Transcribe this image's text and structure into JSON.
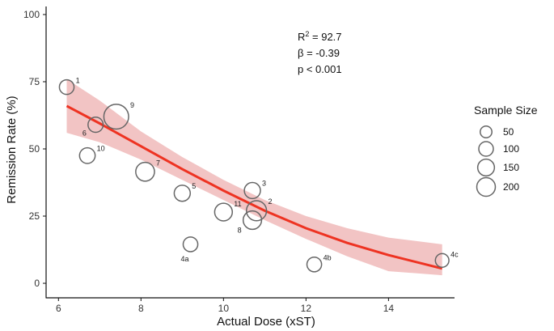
{
  "chart_data": {
    "type": "scatter",
    "title": "",
    "xlabel": "Actual Dose (xST)",
    "ylabel": "Remission Rate (%)",
    "xlim": [
      5.7,
      15.6
    ],
    "ylim": [
      -3,
      103
    ],
    "x_ticks": [
      6,
      8,
      10,
      12,
      14
    ],
    "y_ticks": [
      0,
      25,
      50,
      75,
      100
    ],
    "grid": false,
    "points": [
      {
        "label": "1",
        "x": 6.2,
        "y": 73,
        "size": 40
      },
      {
        "label": "9",
        "x": 7.4,
        "y": 62,
        "size": 200
      },
      {
        "label": "6",
        "x": 6.9,
        "y": 59,
        "size": 45
      },
      {
        "label": "10",
        "x": 6.7,
        "y": 47.5,
        "size": 50
      },
      {
        "label": "7",
        "x": 8.1,
        "y": 41.5,
        "size": 90
      },
      {
        "label": "5",
        "x": 9.0,
        "y": 33.5,
        "size": 55
      },
      {
        "label": "3",
        "x": 10.7,
        "y": 34.5,
        "size": 55
      },
      {
        "label": "11",
        "x": 10.0,
        "y": 26.5,
        "size": 75
      },
      {
        "label": "2",
        "x": 10.8,
        "y": 27,
        "size": 110
      },
      {
        "label": "8",
        "x": 10.7,
        "y": 23.5,
        "size": 85
      },
      {
        "label": "4a",
        "x": 9.2,
        "y": 14.5,
        "size": 40
      },
      {
        "label": "4b",
        "x": 12.2,
        "y": 7,
        "size": 40
      },
      {
        "label": "4c",
        "x": 15.3,
        "y": 8.5,
        "size": 30
      }
    ],
    "fit_line": {
      "x": [
        6.2,
        7.0,
        8.0,
        9.0,
        10.0,
        11.0,
        12.0,
        13.0,
        14.0,
        15.3
      ],
      "y": [
        66,
        59.5,
        51,
        42.5,
        34.5,
        27,
        20.5,
        15,
        10.5,
        5.5
      ],
      "lower": [
        56,
        52.5,
        46,
        38.5,
        31,
        23.5,
        16.5,
        10,
        4.5,
        3
      ],
      "upper": [
        76,
        68,
        56.5,
        47,
        38.5,
        31,
        25,
        20.5,
        17,
        14.5
      ]
    },
    "annotations": {
      "r2_prefix": "R",
      "r2_sup": "2",
      "r2_value": " = 92.7",
      "beta": "β = -0.39",
      "p": "p < 0.001"
    },
    "legend": {
      "title": "Sample Size",
      "position": "right",
      "entries": [
        {
          "label": "50",
          "size": 50
        },
        {
          "label": "100",
          "size": 100
        },
        {
          "label": "150",
          "size": 150
        },
        {
          "label": "200",
          "size": 200
        }
      ]
    },
    "colors": {
      "fit_line": "#ee3322",
      "ci_band": "#f2c4c4",
      "point_stroke": "#666666"
    }
  }
}
